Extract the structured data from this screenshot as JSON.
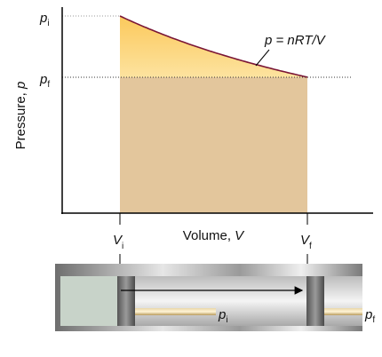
{
  "diagram": {
    "y_axis_label": {
      "text": "Pressure, ",
      "symbol": "p"
    },
    "x_axis_label": {
      "text": "Volume, ",
      "symbol": "V"
    },
    "curve_label": "p = nRT/V",
    "p_initial": {
      "symbol": "p",
      "subscript": "i"
    },
    "p_final": {
      "symbol": "p",
      "subscript": "f"
    },
    "v_initial": {
      "symbol": "V",
      "subscript": "i"
    },
    "v_final": {
      "symbol": "V",
      "subscript": "f"
    },
    "piston_initial_label": {
      "symbol": "p",
      "subscript": "i"
    },
    "piston_final_label": {
      "symbol": "p",
      "subscript": "f"
    }
  }
}
